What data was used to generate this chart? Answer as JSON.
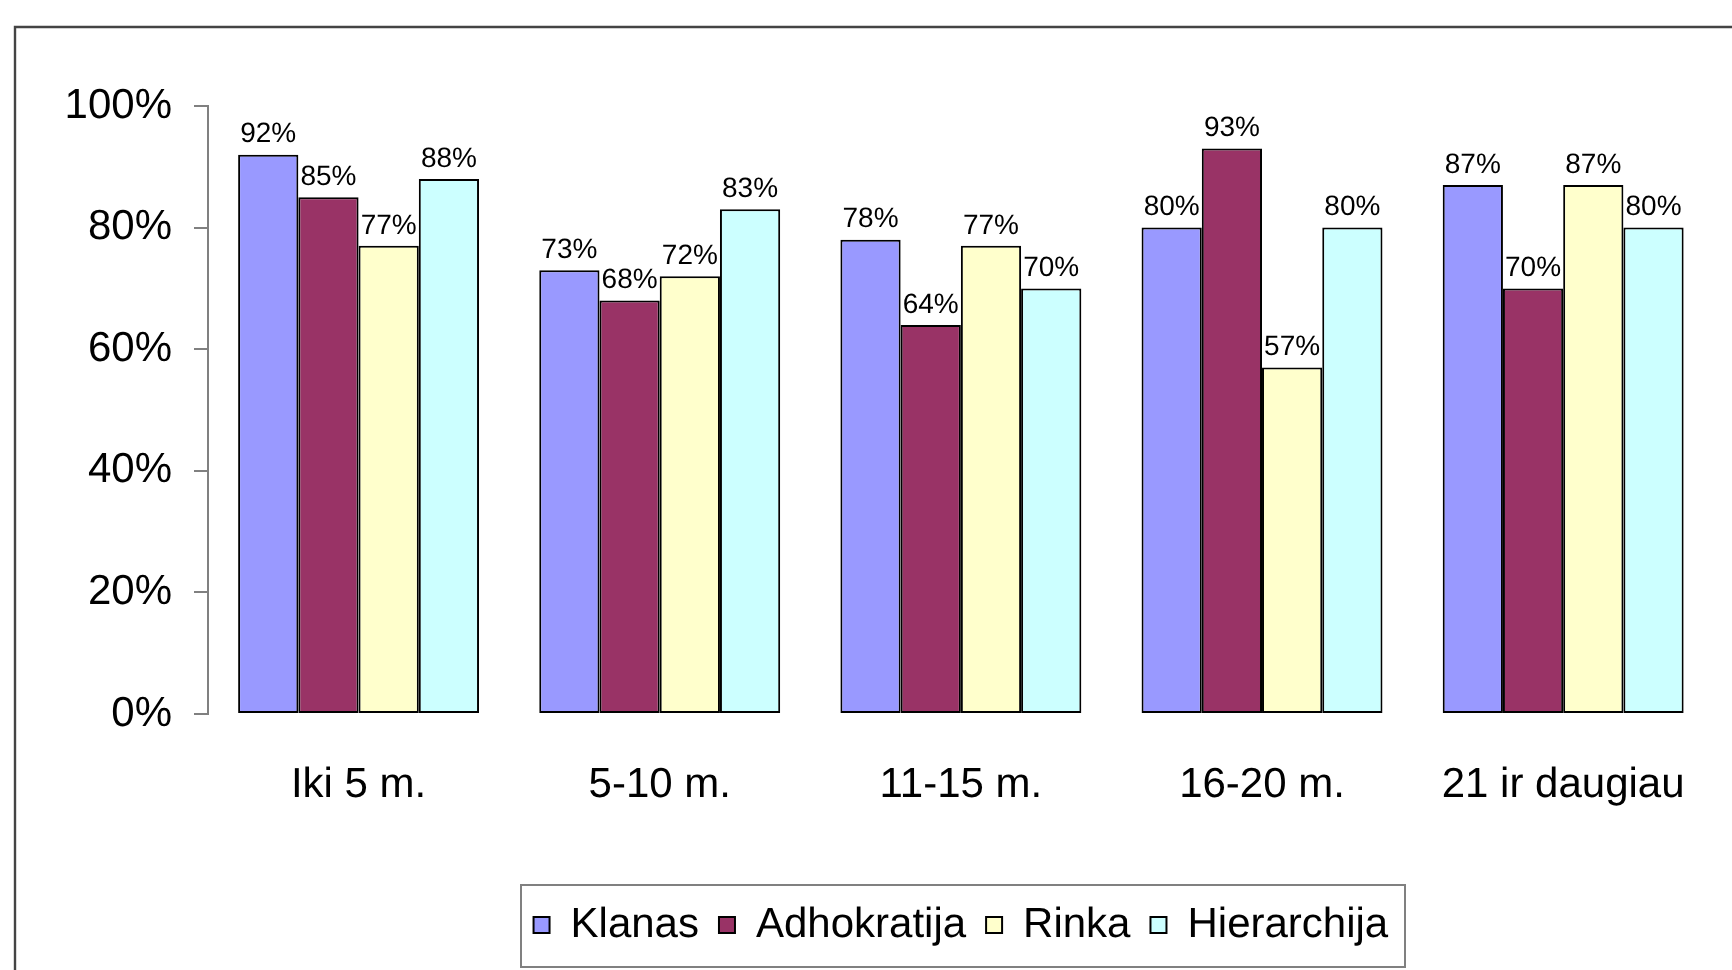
{
  "chart_data": {
    "type": "bar",
    "categories": [
      "Iki 5 m.",
      "5-10 m.",
      "11-15 m.",
      "16-20 m.",
      "21 ir daugiau"
    ],
    "series": [
      {
        "name": "Klanas",
        "color": "#9999ff",
        "values": [
          92,
          73,
          78,
          80,
          87
        ],
        "value_labels": [
          "92%",
          "73%",
          "78%",
          "80%",
          "87%"
        ]
      },
      {
        "name": "Adhokratija",
        "color": "#993366",
        "values": [
          85,
          68,
          64,
          93,
          70
        ],
        "value_labels": [
          "85%",
          "68%",
          "64%",
          "93%",
          "70%"
        ]
      },
      {
        "name": "Rinka",
        "color": "#ffffcc",
        "values": [
          77,
          72,
          77,
          57,
          87
        ],
        "value_labels": [
          "77%",
          "72%",
          "77%",
          "57%",
          "87%"
        ]
      },
      {
        "name": "Hierarchija",
        "color": "#ccffff",
        "values": [
          88,
          83,
          70,
          80,
          80
        ],
        "value_labels": [
          "88%",
          "83%",
          "70%",
          "80%",
          "80%"
        ]
      }
    ],
    "ylim": [
      0,
      100
    ],
    "yticks": [
      {
        "value": 0,
        "label": "0%"
      },
      {
        "value": 20,
        "label": "20%"
      },
      {
        "value": 40,
        "label": "40%"
      },
      {
        "value": 60,
        "label": "60%"
      },
      {
        "value": 80,
        "label": "80%"
      },
      {
        "value": 100,
        "label": "100%"
      }
    ],
    "legend": "bottom",
    "grid": false
  }
}
